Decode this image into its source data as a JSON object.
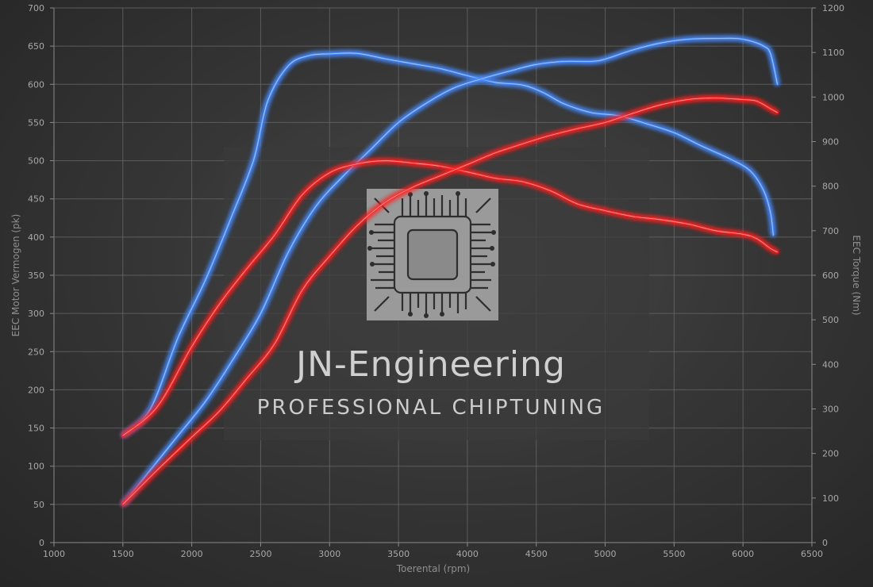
{
  "watermark": {
    "title": "JN-Engineering",
    "subtitle": "PROFESSIONAL CHIPTUNING"
  },
  "chart_data": {
    "type": "line",
    "title": "",
    "xlabel": "Toerental (rpm)",
    "ylabel_left": "EEC Motor Vermogen (pk)",
    "ylabel_right": "EEC Torque (Nm)",
    "xlim": [
      1000,
      6500
    ],
    "xticks": [
      1000,
      1500,
      2000,
      2500,
      3000,
      3500,
      4000,
      4500,
      5000,
      5500,
      6000,
      6500
    ],
    "ylim_left": [
      0,
      700
    ],
    "yticks_left": [
      0,
      50,
      100,
      150,
      200,
      250,
      300,
      350,
      400,
      450,
      500,
      550,
      600,
      650,
      700
    ],
    "ylim_right": [
      0,
      1200
    ],
    "yticks_right": [
      0,
      100,
      200,
      300,
      400,
      500,
      600,
      700,
      800,
      900,
      1000,
      1100,
      1200
    ],
    "grid": true,
    "legend": "none",
    "series": [
      {
        "axis": "right",
        "color": "#4a8cff",
        "points": [
          [
            1500,
            240
          ],
          [
            1700,
            300
          ],
          [
            1900,
            460
          ],
          [
            2100,
            590
          ],
          [
            2300,
            740
          ],
          [
            2450,
            860
          ],
          [
            2550,
            990
          ],
          [
            2700,
            1070
          ],
          [
            2850,
            1093
          ],
          [
            3000,
            1097
          ],
          [
            3200,
            1098
          ],
          [
            3400,
            1086
          ],
          [
            3600,
            1075
          ],
          [
            3800,
            1064
          ],
          [
            4000,
            1048
          ],
          [
            4200,
            1033
          ],
          [
            4400,
            1027
          ],
          [
            4550,
            1010
          ],
          [
            4700,
            985
          ],
          [
            4900,
            965
          ],
          [
            5100,
            958
          ],
          [
            5300,
            940
          ],
          [
            5500,
            920
          ],
          [
            5700,
            890
          ],
          [
            5900,
            862
          ],
          [
            6050,
            835
          ],
          [
            6150,
            790
          ],
          [
            6200,
            740
          ],
          [
            6220,
            690
          ]
        ]
      },
      {
        "axis": "left",
        "color": "#4a8cff",
        "points": [
          [
            1500,
            50
          ],
          [
            1700,
            95
          ],
          [
            1900,
            140
          ],
          [
            2100,
            185
          ],
          [
            2300,
            240
          ],
          [
            2500,
            300
          ],
          [
            2700,
            380
          ],
          [
            2900,
            440
          ],
          [
            3100,
            480
          ],
          [
            3300,
            515
          ],
          [
            3500,
            550
          ],
          [
            3700,
            575
          ],
          [
            3900,
            595
          ],
          [
            4100,
            607
          ],
          [
            4300,
            617
          ],
          [
            4500,
            626
          ],
          [
            4700,
            630
          ],
          [
            4900,
            630
          ],
          [
            5000,
            633
          ],
          [
            5200,
            645
          ],
          [
            5400,
            654
          ],
          [
            5600,
            659
          ],
          [
            5800,
            660
          ],
          [
            5950,
            660
          ],
          [
            6050,
            657
          ],
          [
            6150,
            650
          ],
          [
            6200,
            640
          ],
          [
            6250,
            600
          ]
        ]
      },
      {
        "axis": "right",
        "color": "#ff2828",
        "points": [
          [
            1500,
            240
          ],
          [
            1750,
            305
          ],
          [
            2000,
            440
          ],
          [
            2200,
            535
          ],
          [
            2400,
            615
          ],
          [
            2600,
            690
          ],
          [
            2800,
            780
          ],
          [
            3000,
            830
          ],
          [
            3200,
            850
          ],
          [
            3400,
            857
          ],
          [
            3600,
            852
          ],
          [
            3800,
            845
          ],
          [
            4000,
            832
          ],
          [
            4200,
            818
          ],
          [
            4400,
            810
          ],
          [
            4600,
            790
          ],
          [
            4800,
            760
          ],
          [
            5000,
            745
          ],
          [
            5200,
            732
          ],
          [
            5400,
            725
          ],
          [
            5600,
            715
          ],
          [
            5800,
            700
          ],
          [
            6000,
            692
          ],
          [
            6100,
            682
          ],
          [
            6200,
            660
          ],
          [
            6250,
            652
          ]
        ]
      },
      {
        "axis": "left",
        "color": "#ff2828",
        "points": [
          [
            1500,
            50
          ],
          [
            1750,
            95
          ],
          [
            2000,
            138
          ],
          [
            2200,
            172
          ],
          [
            2400,
            215
          ],
          [
            2600,
            260
          ],
          [
            2800,
            330
          ],
          [
            3000,
            375
          ],
          [
            3200,
            415
          ],
          [
            3400,
            445
          ],
          [
            3600,
            465
          ],
          [
            3800,
            480
          ],
          [
            4000,
            495
          ],
          [
            4200,
            510
          ],
          [
            4400,
            522
          ],
          [
            4600,
            533
          ],
          [
            4800,
            542
          ],
          [
            5000,
            550
          ],
          [
            5200,
            562
          ],
          [
            5400,
            573
          ],
          [
            5600,
            580
          ],
          [
            5800,
            582
          ],
          [
            6000,
            580
          ],
          [
            6100,
            578
          ],
          [
            6200,
            568
          ],
          [
            6250,
            563
          ]
        ]
      }
    ]
  }
}
